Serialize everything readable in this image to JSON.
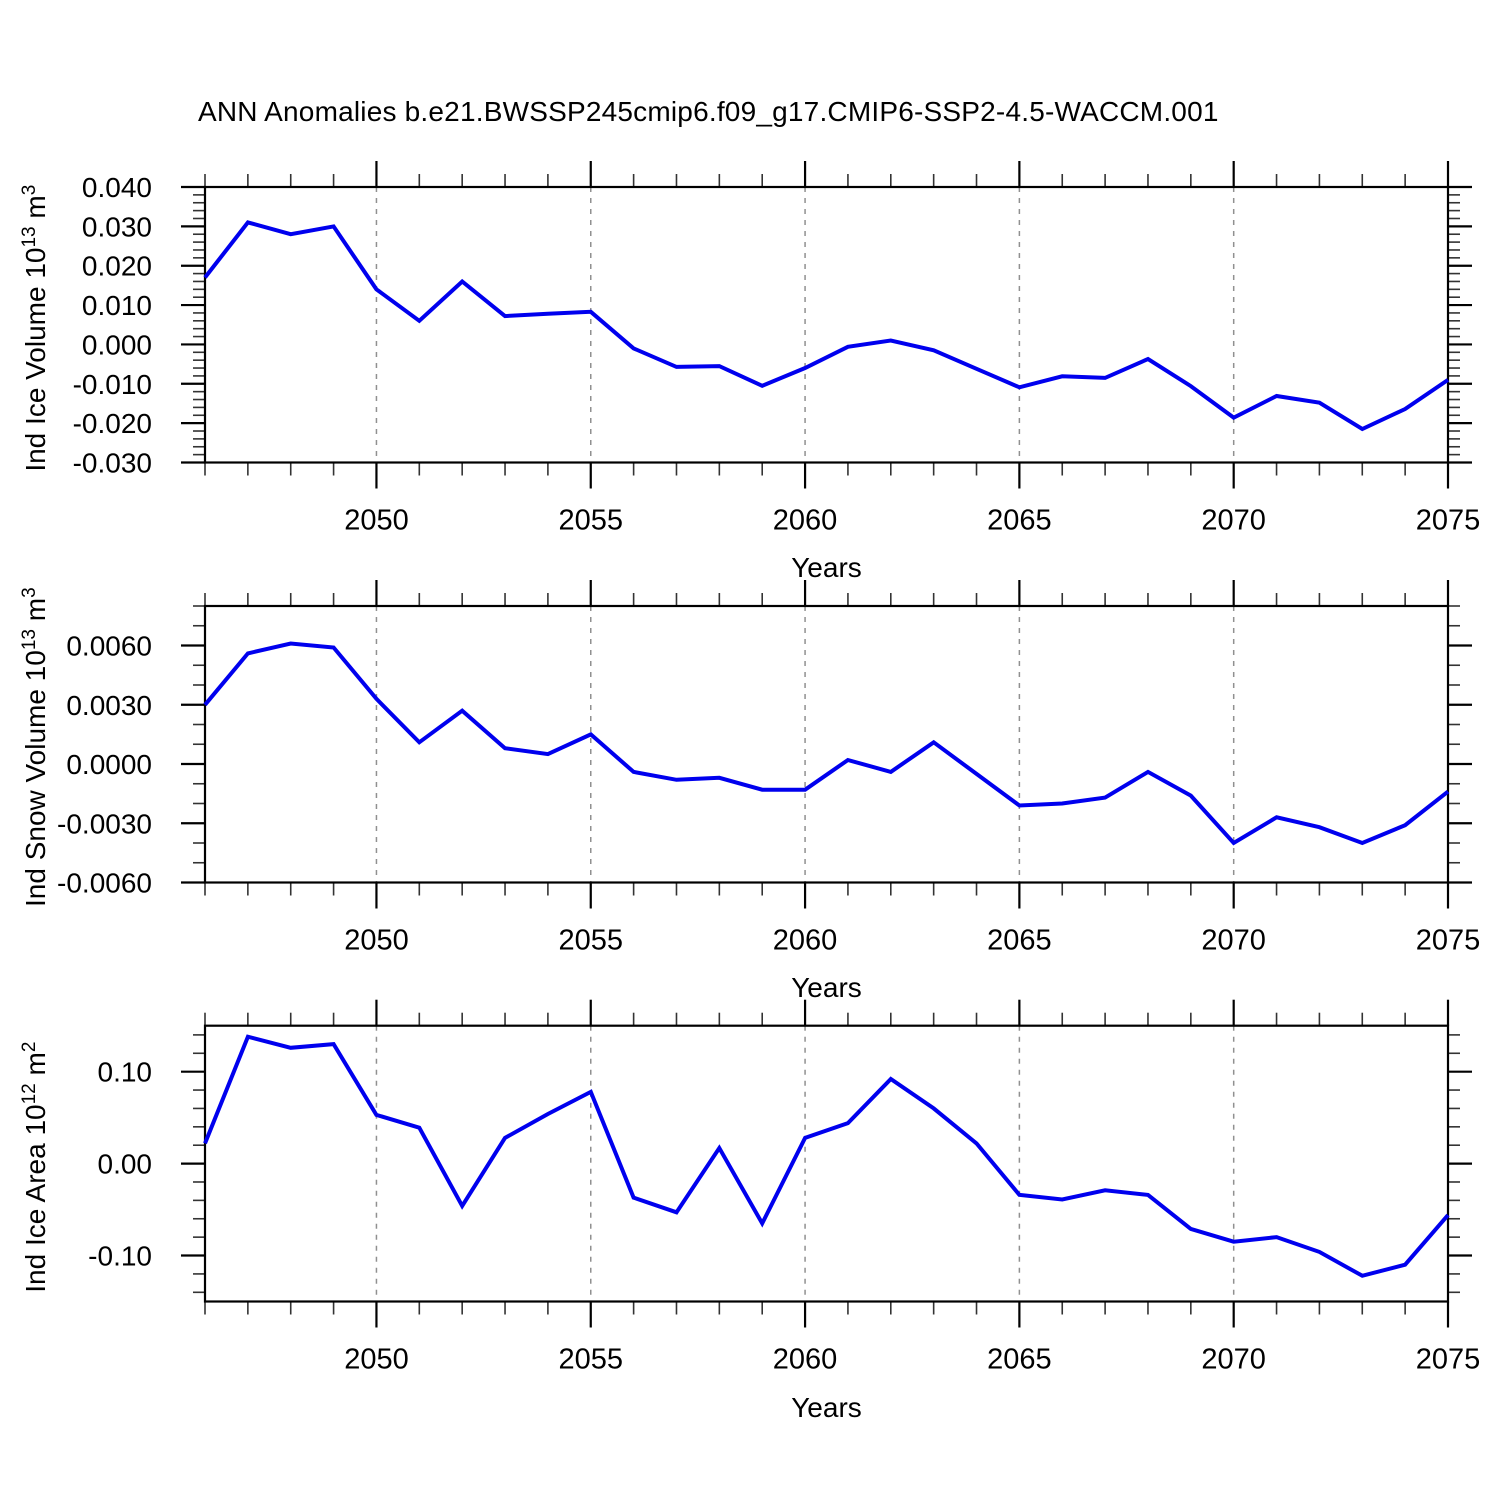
{
  "title": "ANN Anomalies b.e21.BWSSP245cmip6.f09_g17.CMIP6-SSP2-4.5-WACCM.001",
  "accent_color": "#0000ee",
  "gridline_color": "#909090",
  "chart_data": [
    {
      "type": "line",
      "name": "ind-ice-volume",
      "ylabel": {
        "t1": "Ind Ice Volume 10",
        "sup1": "13",
        "t2": " m",
        "sup2": "3"
      },
      "xlabel": "Years",
      "x": [
        2046,
        2047,
        2048,
        2049,
        2050,
        2051,
        2052,
        2053,
        2054,
        2055,
        2056,
        2057,
        2058,
        2059,
        2060,
        2061,
        2062,
        2063,
        2064,
        2065,
        2066,
        2067,
        2068,
        2069,
        2070,
        2071,
        2072,
        2073,
        2074,
        2075
      ],
      "values": [
        0.017,
        0.031,
        0.028,
        0.03,
        0.014,
        0.006,
        0.016,
        0.0072,
        0.0078,
        0.0083,
        -0.001,
        -0.0057,
        -0.0055,
        -0.0105,
        -0.006,
        -0.0006,
        0.001,
        -0.0015,
        -0.0062,
        -0.0109,
        -0.0081,
        -0.0085,
        -0.0037,
        -0.0106,
        -0.0186,
        -0.0131,
        -0.0148,
        -0.0215,
        -0.0164,
        -0.009
      ],
      "xlim": [
        2046,
        2075
      ],
      "ylim": [
        -0.03,
        0.04
      ],
      "xticks_major": {
        "values": [
          2050,
          2055,
          2060,
          2065,
          2070,
          2075
        ],
        "labels": [
          "2050",
          "2055",
          "2060",
          "2065",
          "2070",
          "2075"
        ]
      },
      "x_minor_step": 1,
      "yticks": {
        "values": [
          0.04,
          0.03,
          0.02,
          0.01,
          0.0,
          -0.01,
          -0.02,
          -0.03
        ],
        "labels": [
          "0.040",
          "0.030",
          "0.020",
          "0.010",
          "0.000",
          "-0.010",
          "-0.020",
          "-0.030"
        ]
      },
      "y_minor_step": 0.002,
      "gridlines_x": [
        2050,
        2055,
        2060,
        2065,
        2070
      ],
      "grid": "vertical-dashed",
      "legend": "none",
      "line_color": "#0000ee"
    },
    {
      "type": "line",
      "name": "ind-snow-volume",
      "ylabel": {
        "t1": "Ind Snow Volume 10",
        "sup1": "13",
        "t2": " m",
        "sup2": "3"
      },
      "xlabel": "Years",
      "x": [
        2046,
        2047,
        2048,
        2049,
        2050,
        2051,
        2052,
        2053,
        2054,
        2055,
        2056,
        2057,
        2058,
        2059,
        2060,
        2061,
        2062,
        2063,
        2064,
        2065,
        2066,
        2067,
        2068,
        2069,
        2070,
        2071,
        2072,
        2073,
        2074,
        2075
      ],
      "values": [
        0.003,
        0.0056,
        0.0061,
        0.0059,
        0.0033,
        0.0011,
        0.0027,
        0.0008,
        0.0005,
        0.0015,
        -0.0004,
        -0.0008,
        -0.0007,
        -0.0013,
        -0.0013,
        0.0002,
        -0.0004,
        0.0011,
        -0.0005,
        -0.0021,
        -0.002,
        -0.0017,
        -0.0004,
        -0.0016,
        -0.004,
        -0.0027,
        -0.0032,
        -0.004,
        -0.0031,
        -0.0014
      ],
      "xlim": [
        2046,
        2075
      ],
      "ylim": [
        -0.006,
        0.008
      ],
      "xticks_major": {
        "values": [
          2050,
          2055,
          2060,
          2065,
          2070,
          2075
        ],
        "labels": [
          "2050",
          "2055",
          "2060",
          "2065",
          "2070",
          "2075"
        ]
      },
      "x_minor_step": 1,
      "yticks": {
        "values": [
          0.006,
          0.003,
          0.0,
          -0.003,
          -0.006
        ],
        "labels": [
          "0.0060",
          "0.0030",
          "0.0000",
          "-0.0030",
          "-0.0060"
        ]
      },
      "y_minor_step": 0.001,
      "gridlines_x": [
        2050,
        2055,
        2060,
        2065,
        2070
      ],
      "grid": "vertical-dashed",
      "legend": "none",
      "line_color": "#0000ee"
    },
    {
      "type": "line",
      "name": "ind-ice-area",
      "ylabel": {
        "t1": "Ind Ice Area 10",
        "sup1": "12",
        "t2": " m",
        "sup2": "2"
      },
      "xlabel": "Years",
      "x": [
        2046,
        2047,
        2048,
        2049,
        2050,
        2051,
        2052,
        2053,
        2054,
        2055,
        2056,
        2057,
        2058,
        2059,
        2060,
        2061,
        2062,
        2063,
        2064,
        2065,
        2066,
        2067,
        2068,
        2069,
        2070,
        2071,
        2072,
        2073,
        2074,
        2075
      ],
      "values": [
        0.022,
        0.138,
        0.126,
        0.13,
        0.053,
        0.039,
        -0.046,
        0.028,
        0.054,
        0.078,
        -0.037,
        -0.053,
        0.017,
        -0.065,
        0.028,
        0.044,
        0.092,
        0.06,
        0.022,
        -0.034,
        -0.039,
        -0.029,
        -0.034,
        -0.071,
        -0.085,
        -0.08,
        -0.096,
        -0.122,
        -0.11,
        -0.056
      ],
      "xlim": [
        2046,
        2075
      ],
      "ylim": [
        -0.15,
        0.15
      ],
      "xticks_major": {
        "values": [
          2050,
          2055,
          2060,
          2065,
          2070,
          2075
        ],
        "labels": [
          "2050",
          "2055",
          "2060",
          "2065",
          "2070",
          "2075"
        ]
      },
      "x_minor_step": 1,
      "yticks": {
        "values": [
          0.1,
          0.0,
          -0.1
        ],
        "labels": [
          "0.10",
          "0.00",
          "-0.10"
        ]
      },
      "y_minor_step": 0.02,
      "gridlines_x": [
        2050,
        2055,
        2060,
        2065,
        2070
      ],
      "grid": "vertical-dashed",
      "legend": "none",
      "line_color": "#0000ee"
    }
  ]
}
